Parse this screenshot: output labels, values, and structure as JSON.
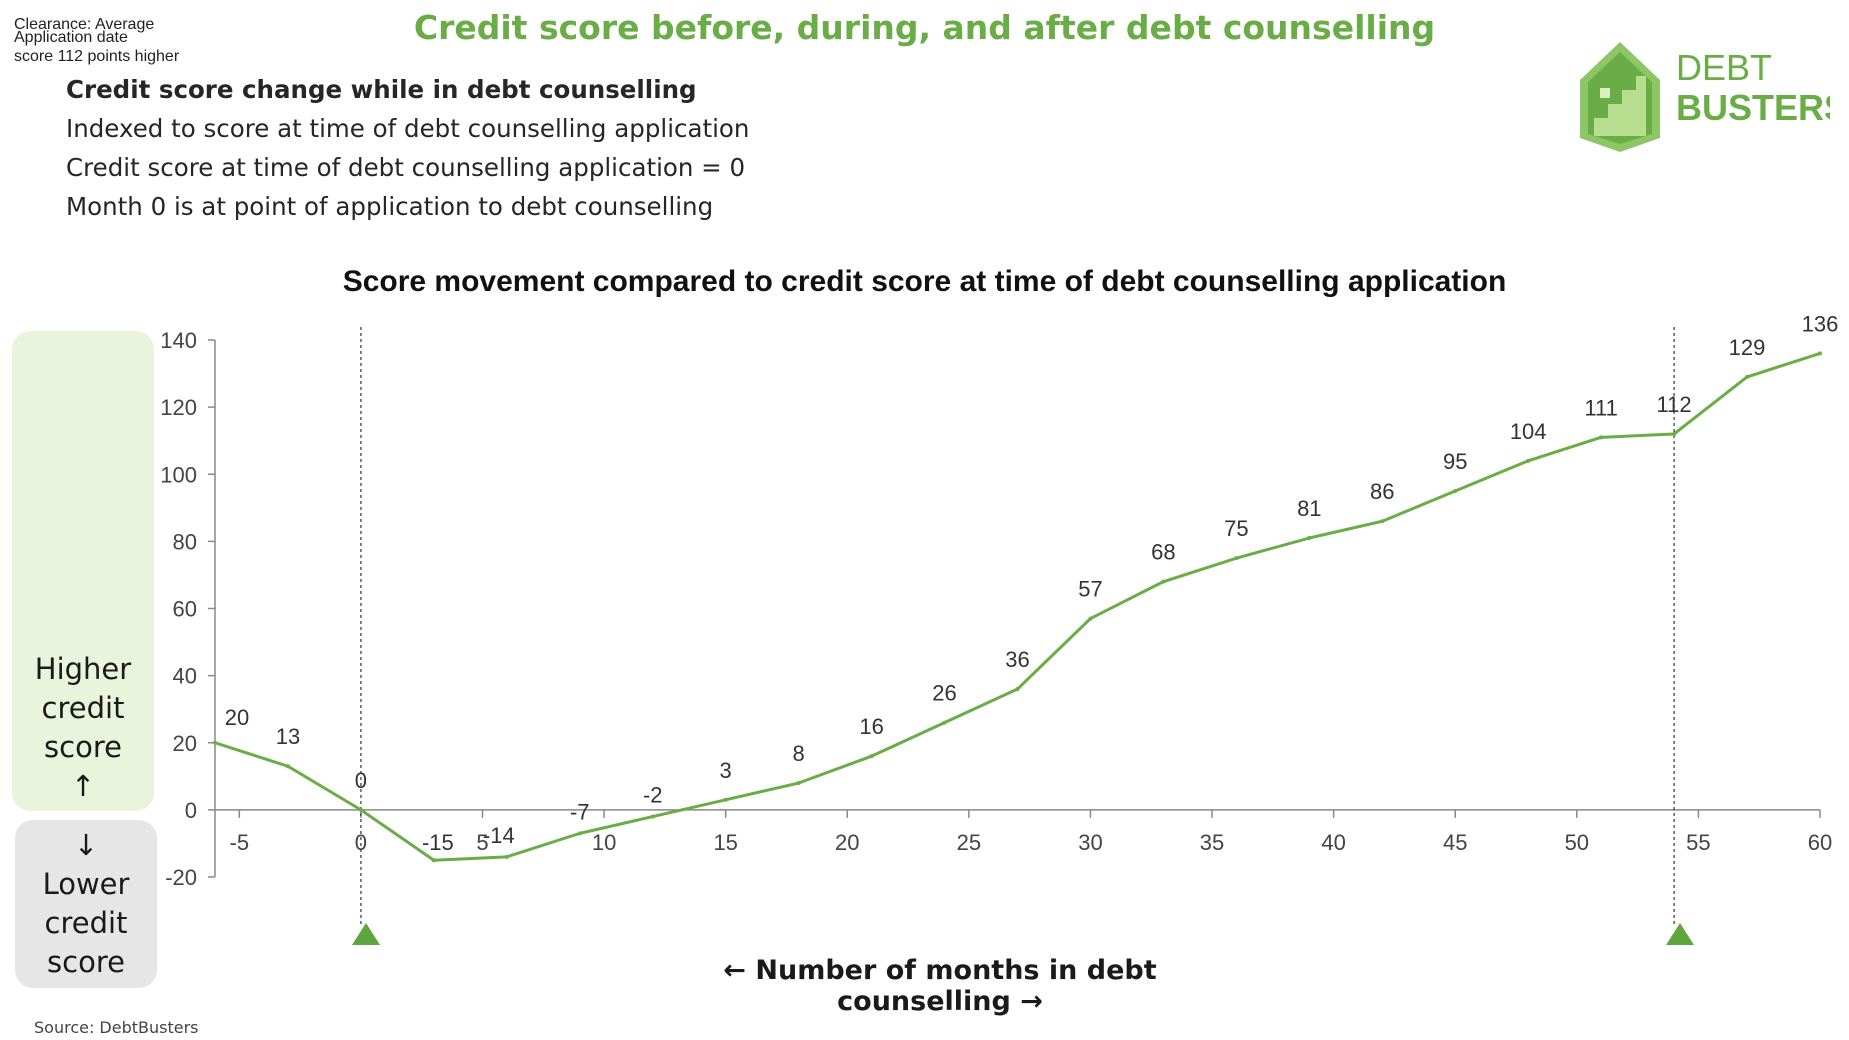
{
  "header": {
    "title": "Credit score before, during, and after debt counselling"
  },
  "intro": {
    "line1": "Credit score change while in debt counselling",
    "line2": "Indexed to score at time of debt counselling application",
    "line3": "Credit score at time of debt counselling application = 0",
    "line4": "Month 0 is at point of application to debt counselling"
  },
  "logo": {
    "icon": "house-stairs-icon",
    "line1": "DEBT",
    "line2": "BUSTERS",
    "color": "#6aac46"
  },
  "side_labels": {
    "higher": [
      "Higher",
      "credit",
      "score",
      "↑"
    ],
    "lower": [
      "↓",
      "Lower",
      "credit",
      "score"
    ]
  },
  "callouts": {
    "application": "Application date",
    "clearance_line1": "Clearance: Average",
    "clearance_line2": "score 112 points higher"
  },
  "xlabel": "← Number of months in debt counselling →",
  "source": "Source: DebtBusters",
  "chart_data": {
    "type": "line",
    "title": "Score movement compared to credit score at time of debt counselling application",
    "xlabel": "← Number of months in debt counselling →",
    "ylabel": "",
    "xlim": [
      -6,
      60
    ],
    "ylim": [
      -20,
      140
    ],
    "x_ticks": [
      -5,
      0,
      5,
      10,
      15,
      20,
      25,
      30,
      35,
      40,
      45,
      50,
      55,
      60
    ],
    "y_ticks": [
      -20,
      0,
      20,
      40,
      60,
      80,
      100,
      120,
      140
    ],
    "series": [
      {
        "x": [
          -6,
          -3,
          0,
          3,
          6,
          9,
          12,
          15,
          18,
          21,
          24,
          27,
          30,
          33,
          36,
          39,
          42,
          45,
          48,
          51,
          54,
          57,
          60
        ],
        "values": [
          20,
          13,
          0,
          -15,
          -14,
          -7,
          -2,
          3,
          8,
          16,
          26,
          36,
          57,
          68,
          75,
          81,
          86,
          95,
          104,
          111,
          112,
          129,
          136
        ],
        "labels": [
          "20",
          "13",
          "0",
          "-15",
          "-14",
          "-7",
          "-2",
          "3",
          "8",
          "16",
          "26",
          "36",
          "57",
          "68",
          "75",
          "81",
          "86",
          "95",
          "104",
          "111",
          "112",
          "129",
          "136"
        ],
        "color": "#6aac46"
      }
    ],
    "reference_lines": [
      {
        "x": 0,
        "style": "dashed"
      },
      {
        "x": 54,
        "style": "dashed"
      }
    ],
    "grid": false
  }
}
